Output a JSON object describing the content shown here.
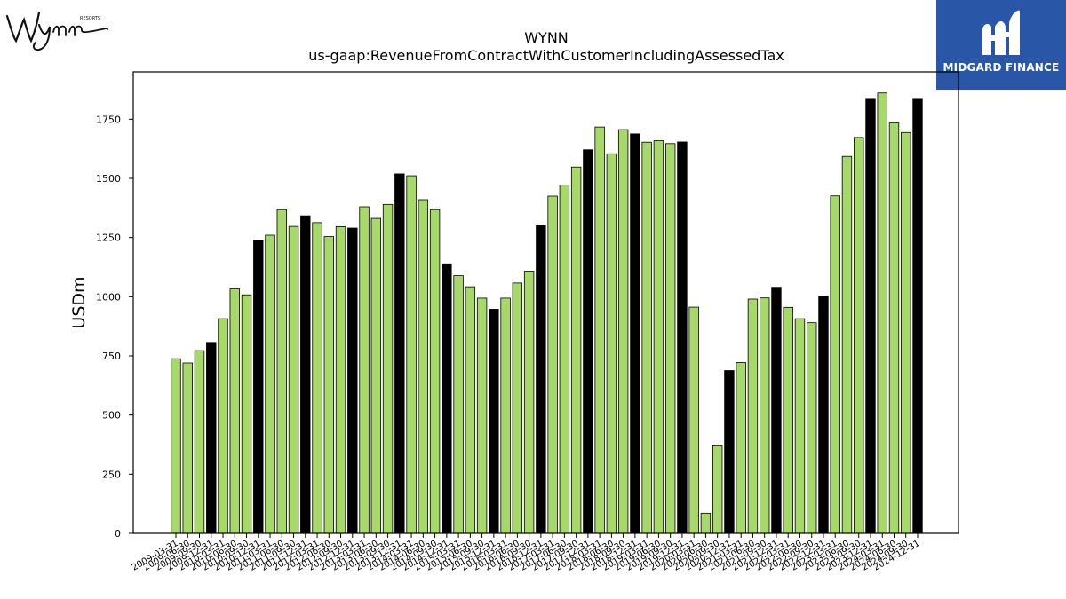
{
  "logos": {
    "left": {
      "text": "Wynn",
      "subtext": "RESORTS",
      "icon": "wynn-signature-logo"
    },
    "right": {
      "text": "MIDGARD FINANCE",
      "icon": "midgard-m-logo",
      "background": "#2a56a8"
    }
  },
  "chart_data": {
    "type": "bar",
    "title": "WYNN",
    "subtitle": "us-gaap:RevenueFromContractWithCustomerIncludingAssessedTax",
    "xlabel": "",
    "ylabel": "USDm",
    "ylim": [
      0,
      1950
    ],
    "yticks": [
      0,
      250,
      500,
      750,
      1000,
      1250,
      1500,
      1750
    ],
    "grid": false,
    "colors": {
      "quarter": "#a6d86a",
      "fiscal_year_end": "#000000",
      "edge": "#000000"
    },
    "categories": [
      "2009-03-31",
      "2009-06-30",
      "2009-09-30",
      "2009-12-31",
      "2010-03-31",
      "2010-06-30",
      "2010-09-30",
      "2010-12-31",
      "2011-03-31",
      "2011-06-30",
      "2011-09-30",
      "2011-12-31",
      "2012-03-31",
      "2012-06-30",
      "2012-09-30",
      "2012-12-31",
      "2013-03-31",
      "2013-06-30",
      "2013-09-30",
      "2013-12-31",
      "2014-03-31",
      "2014-06-30",
      "2014-09-30",
      "2014-12-31",
      "2015-03-31",
      "2015-06-30",
      "2015-09-30",
      "2015-12-31",
      "2016-03-31",
      "2016-06-30",
      "2016-09-30",
      "2016-12-31",
      "2017-03-31",
      "2017-06-30",
      "2017-09-30",
      "2017-12-31",
      "2018-03-31",
      "2018-06-30",
      "2018-09-30",
      "2018-12-31",
      "2019-03-31",
      "2019-06-30",
      "2019-09-30",
      "2019-12-31",
      "2020-03-31",
      "2020-06-30",
      "2020-09-30",
      "2020-12-31",
      "2021-03-31",
      "2021-06-30",
      "2021-09-30",
      "2021-12-31",
      "2022-03-31",
      "2022-06-30",
      "2022-09-30",
      "2022-12-31",
      "2023-03-31",
      "2023-06-30",
      "2023-09-30",
      "2023-12-31",
      "2024-03-31",
      "2024-06-30",
      "2024-09-30",
      "2024-12-31"
    ],
    "x_tick_labels": [
      "2009-03-31",
      "2009-06-30",
      "2009-09-30",
      "2009-12-31",
      "2010-03-31",
      "2010-06-30",
      "2010-09-30",
      "2010-12-31",
      "2011-03-31",
      "2011-06-30",
      "2011-09-30",
      "2011-12-31",
      "2012-03-31",
      "2012-06-30",
      "2012-09-30",
      "2012-12-31",
      "2013-03-31",
      "2013-06-30",
      "2013-09-30",
      "2013-12-31",
      "2014-03-31",
      "2014-06-30",
      "2014-09-30",
      "2014-12-31",
      "2015-03-31",
      "2015-06-30",
      "2015-09-30",
      "2015-12-31",
      "2016-03-31",
      "2016-06-30",
      "2016-09-30",
      "2016-12-31",
      "2017-03-31",
      "2017-06-30",
      "2017-09-30",
      "2017-12-31",
      "2018-03-31",
      "2018-06-30",
      "2018-09-30",
      "2018-12-31",
      "2019-03-31",
      "2019-06-30",
      "2019-09-30",
      "2019-12-31",
      "2020-03-31",
      "2020-06-30",
      "2020-09-30",
      "2020-12-31",
      "2021-03-31",
      "2021-06-30",
      "2021-09-30",
      "2021-12-31",
      "2022-03-31",
      "2022-06-30",
      "2022-09-30",
      "2022-12-31",
      "2023-03-31",
      "2023-06-30",
      "2023-09-30",
      "2023-12-31",
      "2024-03-31",
      "2024-06-30",
      "2024-09-30",
      "2024-12-31"
    ],
    "values": [
      738,
      720,
      772,
      807,
      907,
      1033,
      1008,
      1238,
      1260,
      1368,
      1297,
      1342,
      1313,
      1254,
      1296,
      1290,
      1380,
      1331,
      1390,
      1519,
      1511,
      1410,
      1368,
      1139,
      1089,
      1042,
      994,
      947,
      994,
      1058,
      1108,
      1300,
      1425,
      1472,
      1548,
      1621,
      1717,
      1604,
      1706,
      1688,
      1653,
      1659,
      1647,
      1654,
      956,
      85,
      370,
      688,
      722,
      990,
      995,
      1040,
      955,
      907,
      890,
      1003,
      1426,
      1593,
      1673,
      1838,
      1861,
      1734,
      1694,
      1838
    ],
    "fiscal_year_end_flags": [
      false,
      false,
      false,
      true,
      false,
      false,
      false,
      true,
      false,
      false,
      false,
      true,
      false,
      false,
      false,
      true,
      false,
      false,
      false,
      true,
      false,
      false,
      false,
      true,
      false,
      false,
      false,
      true,
      false,
      false,
      false,
      true,
      false,
      false,
      false,
      true,
      false,
      false,
      false,
      true,
      false,
      false,
      false,
      true,
      false,
      false,
      false,
      true,
      false,
      false,
      false,
      true,
      false,
      false,
      false,
      true,
      false,
      false,
      false,
      true,
      false,
      false,
      false,
      true
    ]
  }
}
